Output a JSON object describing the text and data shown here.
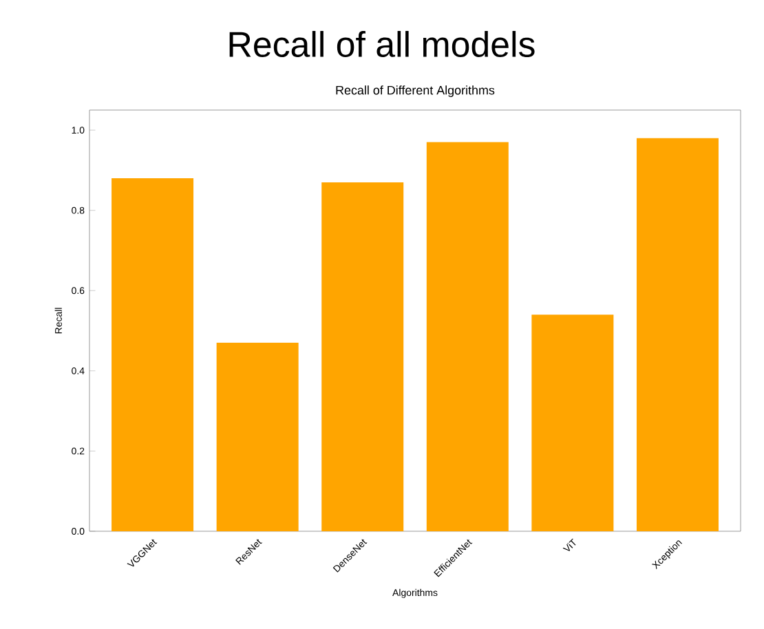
{
  "chart_data": {
    "type": "bar",
    "title": "Recall of all models",
    "subtitle": "Recall of Different Algorithms",
    "xlabel": "Algorithms",
    "ylabel": "Recall",
    "categories": [
      "VGGNet",
      "ResNet",
      "DenseNet",
      "EfficientNet",
      "ViT",
      "Xception"
    ],
    "values": [
      0.88,
      0.47,
      0.87,
      0.97,
      0.54,
      0.98
    ],
    "color": "#ffa500",
    "ylim": [
      0,
      1.05
    ],
    "yticks": [
      {
        "value": 0,
        "label": "0.0"
      },
      {
        "value": 0.2,
        "label": "0.2"
      },
      {
        "value": 0.4,
        "label": "0.4"
      },
      {
        "value": 0.6,
        "label": "0.6"
      },
      {
        "value": 0.8,
        "label": "0.8"
      },
      {
        "value": 1,
        "label": "1.0"
      }
    ],
    "grid": false
  }
}
